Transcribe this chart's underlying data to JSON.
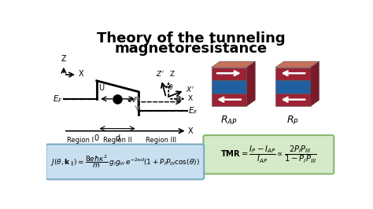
{
  "title_line1": "Theory of the tunneling",
  "title_line2": "magnetoresistance",
  "title_fontsize": 13,
  "bg_color": "#ffffff",
  "formula_box_color": "#c8dff0",
  "tmr_box_color": "#d4eac8",
  "formula_text": "$J(\\theta, \\mathbf{k}_{\\parallel}) = \\dfrac{8e\\hbar\\kappa^2}{m}\\,g_I g_{III}\\,e^{-2\\kappa d}(1 + P_I P_{III}\\cos(\\theta))$",
  "tmr_text": "$\\mathbf{TMR} = \\dfrac{I_P - I_{AP}}{I_{AP}} \\propto \\dfrac{2P_I P_{III}}{1 - P_I P_{III}}$",
  "region1": "Region I",
  "region2": "Region II",
  "region3": "Region III",
  "rap_label": "$R_{AP}$",
  "rp_label": "$R_P$",
  "red_dark": "#9b2335",
  "red_light": "#c94050",
  "red_top": "#c8705a",
  "blue_mid": "#2060a0",
  "right_face_dark": "#7a1a28"
}
